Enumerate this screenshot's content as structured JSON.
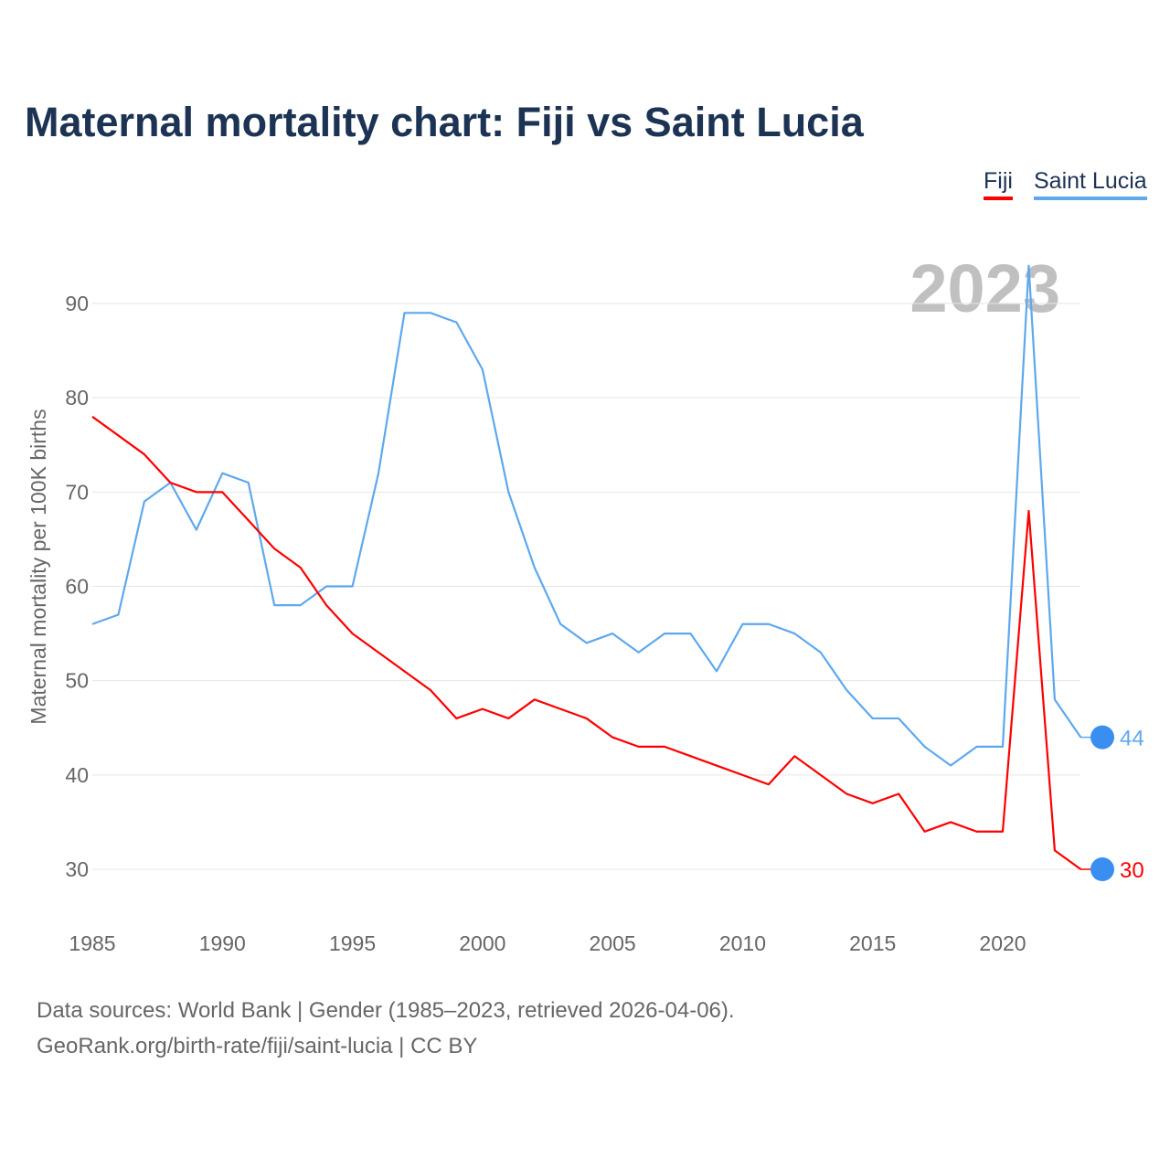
{
  "title": "Maternal mortality chart: Fiji vs Saint Lucia",
  "legend": [
    "Fiji",
    "Saint Lucia"
  ],
  "footer": {
    "line1": "Data sources: World Bank | Gender (1985–2023, retrieved 2026-04-06).",
    "line2": "GeoRank.org/birth-rate/fiji/saint-lucia | CC BY"
  },
  "chart_data": {
    "type": "line",
    "title": "Maternal mortality chart: Fiji vs Saint Lucia",
    "ylabel": "Maternal mortality per 100K births",
    "xlabel": "",
    "year_watermark": "2023",
    "xlim": [
      1985,
      2023
    ],
    "ylim": [
      25,
      95
    ],
    "x_ticks": [
      "1985",
      "1990",
      "1995",
      "2000",
      "2005",
      "2010",
      "2015",
      "2020"
    ],
    "y_ticks": [
      "30",
      "40",
      "50",
      "60",
      "70",
      "80",
      "90"
    ],
    "grid": true,
    "legend_position": "top-right",
    "x": [
      1985,
      1986,
      1987,
      1988,
      1989,
      1990,
      1991,
      1992,
      1993,
      1994,
      1995,
      1996,
      1997,
      1998,
      1999,
      2000,
      2001,
      2002,
      2003,
      2004,
      2005,
      2006,
      2007,
      2008,
      2009,
      2010,
      2011,
      2012,
      2013,
      2014,
      2015,
      2016,
      2017,
      2018,
      2019,
      2020,
      2021,
      2022,
      2023
    ],
    "series": [
      {
        "name": "Fiji",
        "color": "#ff0000",
        "end_label": "30",
        "values": [
          78,
          76,
          74,
          71,
          70,
          70,
          67,
          64,
          62,
          58,
          55,
          53,
          51,
          49,
          46,
          47,
          46,
          48,
          47,
          46,
          44,
          43,
          43,
          42,
          41,
          40,
          39,
          42,
          40,
          38,
          37,
          38,
          34,
          35,
          34,
          34,
          68,
          32,
          30
        ]
      },
      {
        "name": "Saint Lucia",
        "color": "#5ea8ee",
        "end_label": "44",
        "values": [
          56,
          57,
          69,
          71,
          66,
          72,
          71,
          58,
          58,
          60,
          60,
          72,
          89,
          89,
          88,
          83,
          70,
          62,
          56,
          54,
          55,
          53,
          55,
          55,
          51,
          56,
          56,
          55,
          53,
          49,
          46,
          46,
          43,
          41,
          43,
          43,
          94,
          48,
          44
        ]
      }
    ]
  }
}
